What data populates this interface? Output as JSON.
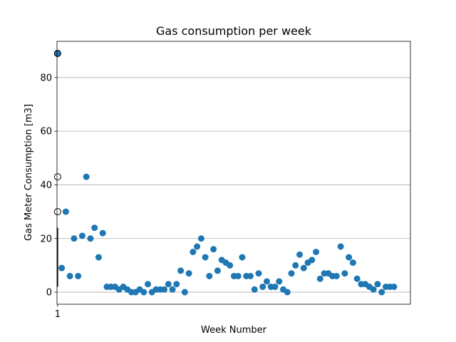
{
  "chart_data": {
    "type": "scatter",
    "title": "Gas consumption per week",
    "xlabel": "Week Number",
    "ylabel": "Gas Meter Consumption [m3]",
    "xlim": [
      0.85,
      87
    ],
    "ylim": [
      -4.5,
      93.5
    ],
    "x_ticks": [
      {
        "value": 1,
        "label": "1"
      }
    ],
    "y_ticks": [
      {
        "value": 0,
        "label": "0"
      },
      {
        "value": 20,
        "label": "20"
      },
      {
        "value": 40,
        "label": "40"
      },
      {
        "value": 60,
        "label": "60"
      },
      {
        "value": 80,
        "label": "80"
      }
    ],
    "grid": {
      "axis": "y",
      "on": true
    },
    "point_color": "#1f77b4",
    "series": [
      {
        "marker": "filled",
        "points": [
          [
            1,
            89
          ],
          [
            2,
            9
          ],
          [
            3,
            30
          ],
          [
            4,
            6
          ],
          [
            5,
            20
          ],
          [
            6,
            6
          ],
          [
            7,
            21
          ],
          [
            8,
            43
          ],
          [
            9,
            20
          ],
          [
            10,
            24
          ],
          [
            11,
            13
          ],
          [
            12,
            22
          ],
          [
            13,
            2
          ],
          [
            14,
            2
          ],
          [
            15,
            2
          ],
          [
            16,
            1
          ],
          [
            17,
            2
          ],
          [
            18,
            1
          ],
          [
            19,
            0
          ],
          [
            20,
            0
          ],
          [
            21,
            1
          ],
          [
            22,
            0
          ],
          [
            23,
            3
          ],
          [
            24,
            0
          ],
          [
            25,
            1
          ],
          [
            26,
            1
          ],
          [
            27,
            1
          ],
          [
            28,
            3
          ],
          [
            29,
            1
          ],
          [
            30,
            3
          ],
          [
            31,
            8
          ],
          [
            32,
            0
          ],
          [
            33,
            7
          ],
          [
            34,
            15
          ],
          [
            35,
            17
          ],
          [
            36,
            20
          ],
          [
            37,
            13
          ],
          [
            38,
            6
          ],
          [
            39,
            16
          ],
          [
            40,
            8
          ],
          [
            41,
            12
          ],
          [
            42,
            11
          ],
          [
            43,
            10
          ],
          [
            44,
            6
          ],
          [
            45,
            6
          ],
          [
            46,
            13
          ],
          [
            47,
            6
          ],
          [
            48,
            6
          ],
          [
            49,
            1
          ],
          [
            50,
            7
          ],
          [
            51,
            2
          ],
          [
            52,
            4
          ],
          [
            53,
            2
          ],
          [
            54,
            2
          ],
          [
            55,
            4
          ],
          [
            56,
            1
          ],
          [
            57,
            0
          ],
          [
            58,
            7
          ],
          [
            59,
            10
          ],
          [
            60,
            14
          ],
          [
            61,
            9
          ],
          [
            62,
            11
          ],
          [
            63,
            12
          ],
          [
            64,
            15
          ],
          [
            65,
            5
          ],
          [
            66,
            7
          ],
          [
            67,
            7
          ],
          [
            68,
            6
          ],
          [
            69,
            6
          ],
          [
            70,
            17
          ],
          [
            71,
            7
          ],
          [
            72,
            13
          ],
          [
            73,
            11
          ],
          [
            74,
            5
          ],
          [
            75,
            3
          ],
          [
            76,
            3
          ],
          [
            77,
            2
          ],
          [
            78,
            1
          ],
          [
            79,
            3
          ],
          [
            80,
            0
          ],
          [
            81,
            2
          ],
          [
            82,
            2
          ],
          [
            83,
            2
          ]
        ]
      },
      {
        "marker": "hollow",
        "points": [
          [
            1,
            89
          ],
          [
            1,
            43
          ],
          [
            1,
            30
          ]
        ]
      }
    ],
    "whisker": {
      "x": 1,
      "segments": [
        [
          2,
          11
        ],
        [
          11,
          24
        ]
      ]
    }
  }
}
